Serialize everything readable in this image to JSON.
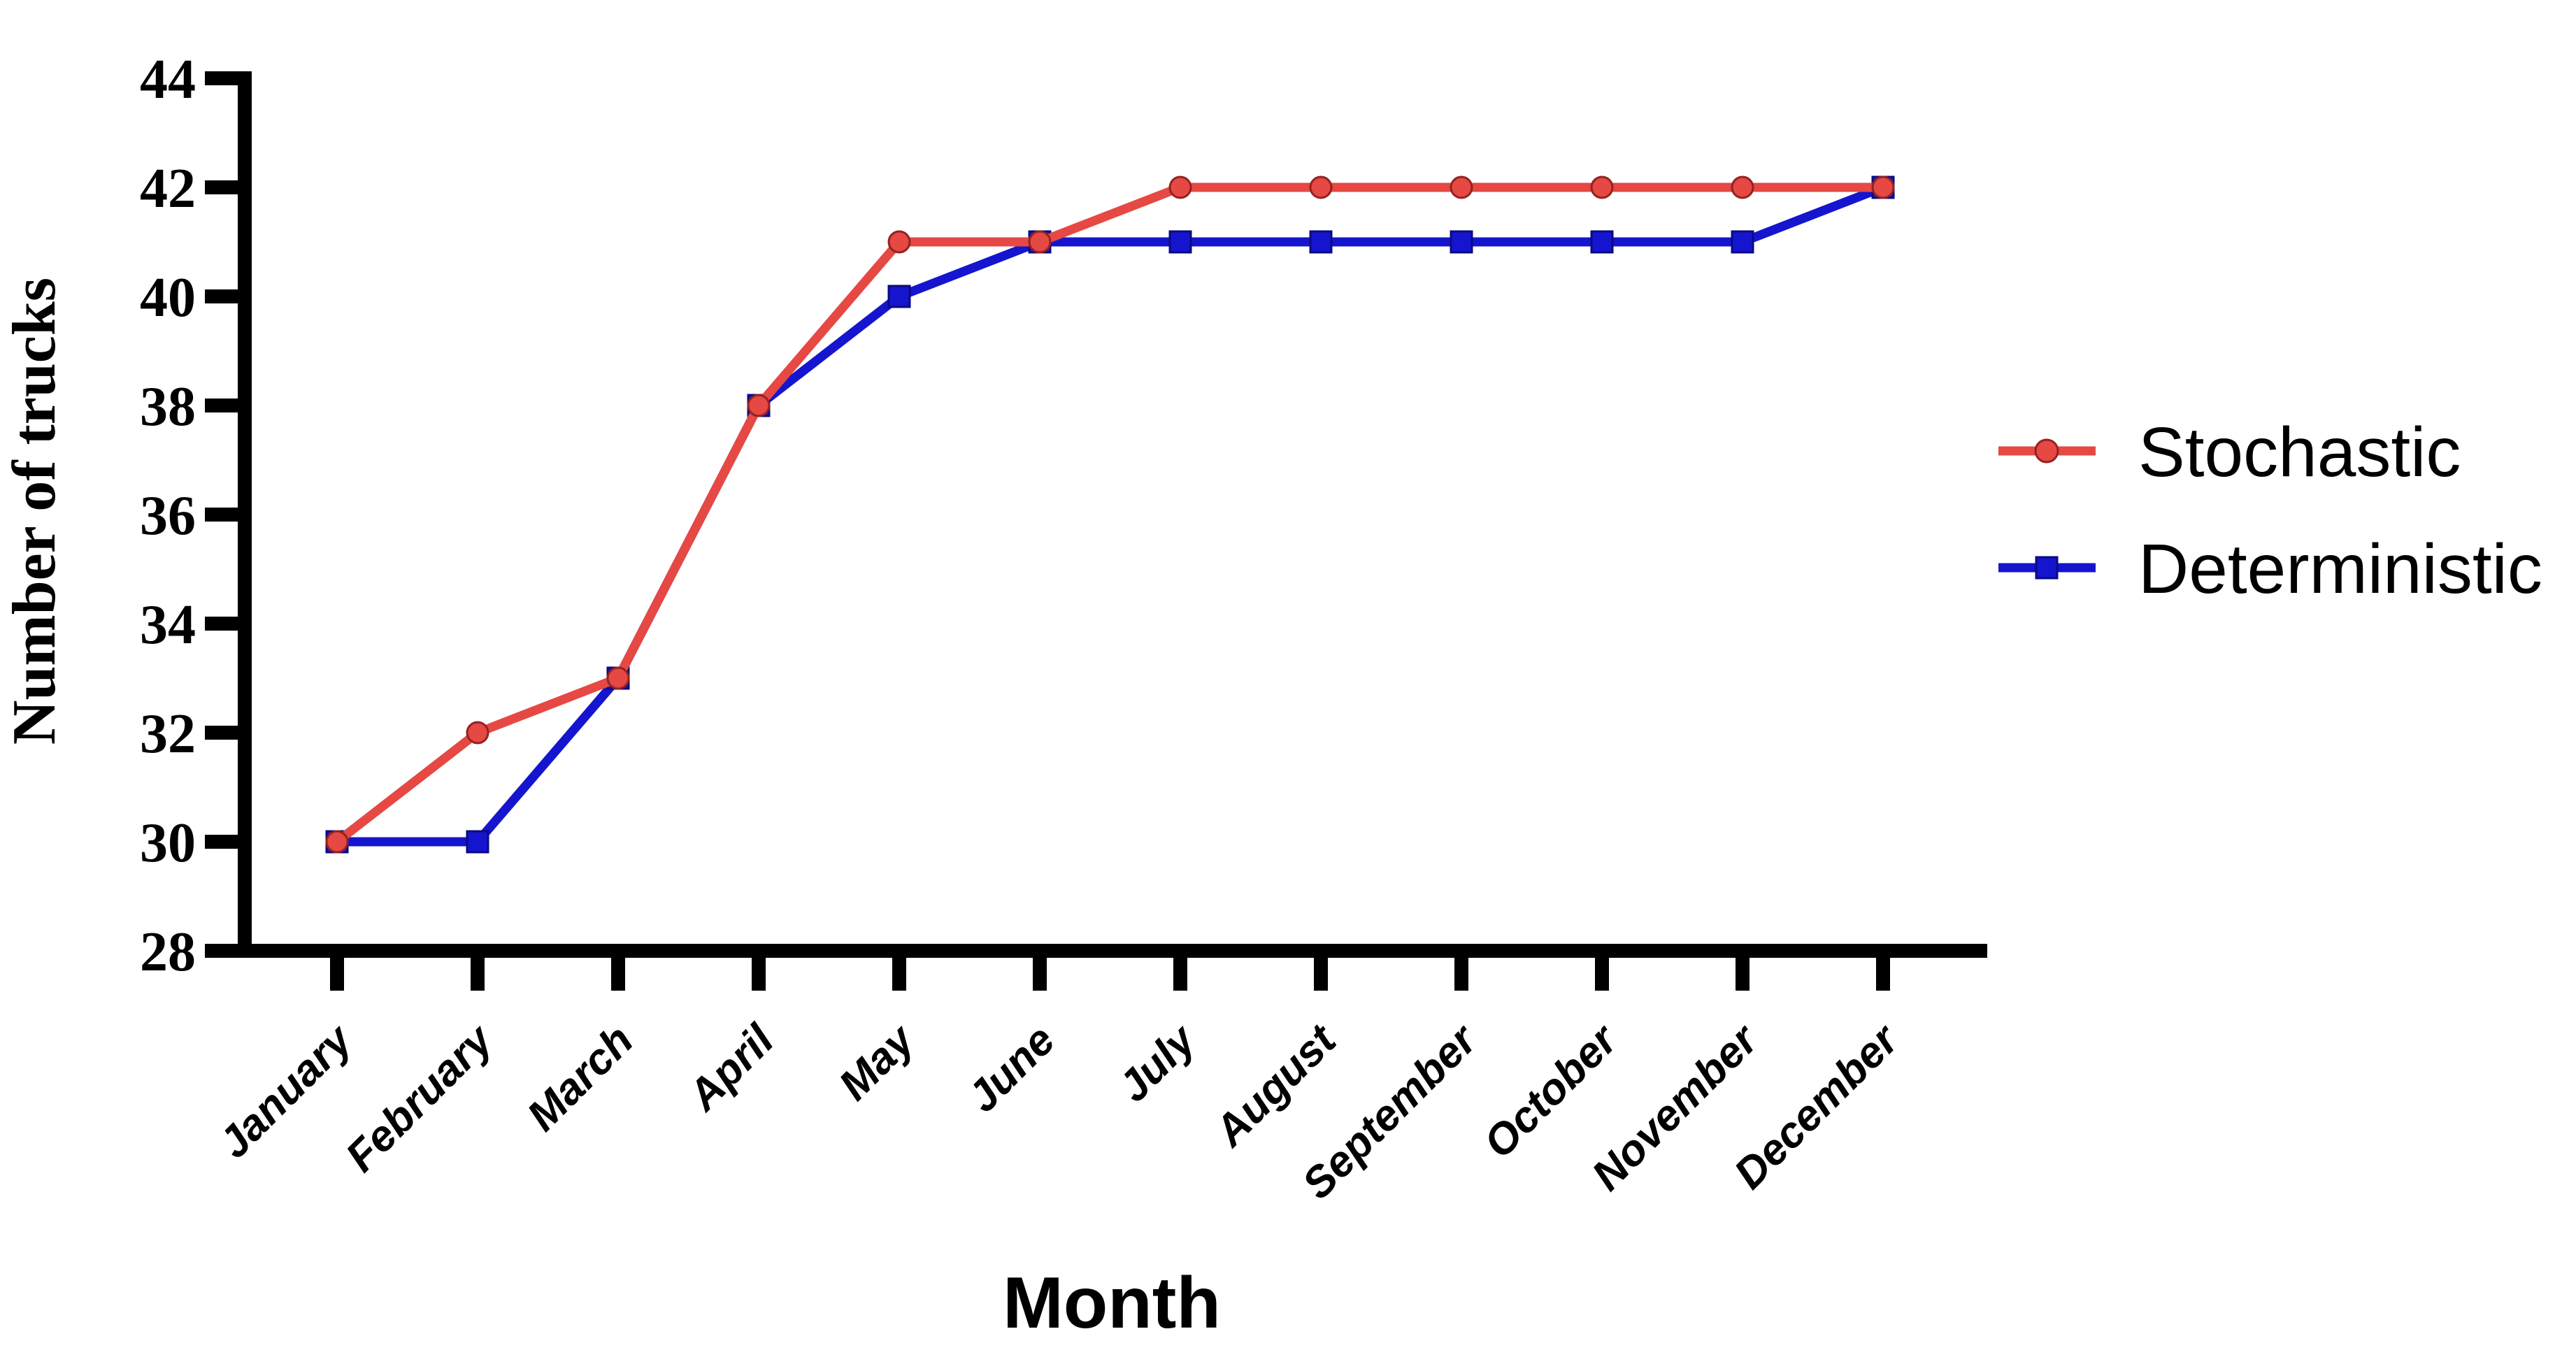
{
  "figure": {
    "background": "#ffffff",
    "axis_color": "#000000"
  },
  "chart_data": {
    "type": "line",
    "title": "",
    "xlabel": "Month",
    "ylabel": "Number of trucks",
    "categories": [
      "January",
      "February",
      "March",
      "April",
      "May",
      "June",
      "July",
      "August",
      "September",
      "October",
      "November",
      "December"
    ],
    "series": [
      {
        "name": "Stochastic",
        "color": "#E64843",
        "marker": "circle",
        "marker_edge": "#93221F",
        "values": [
          30,
          32,
          33,
          38,
          41,
          41,
          42,
          42,
          42,
          42,
          42,
          42
        ]
      },
      {
        "name": "Deterministic",
        "color": "#1515CF",
        "marker": "square",
        "marker_edge": "#0A0A80",
        "values": [
          30,
          30,
          33,
          38,
          40,
          41,
          41,
          41,
          41,
          41,
          41,
          42
        ]
      }
    ],
    "ylim": [
      28,
      44
    ],
    "ytick_step": 2,
    "yticks": [
      28,
      30,
      32,
      34,
      36,
      38,
      40,
      42,
      44
    ],
    "grid": false,
    "legend_position": "right"
  },
  "legend": {
    "items": [
      {
        "label": "Stochastic",
        "color": "#E64843",
        "marker": "circle"
      },
      {
        "label": "Deterministic",
        "color": "#1515CF",
        "marker": "square"
      }
    ]
  }
}
